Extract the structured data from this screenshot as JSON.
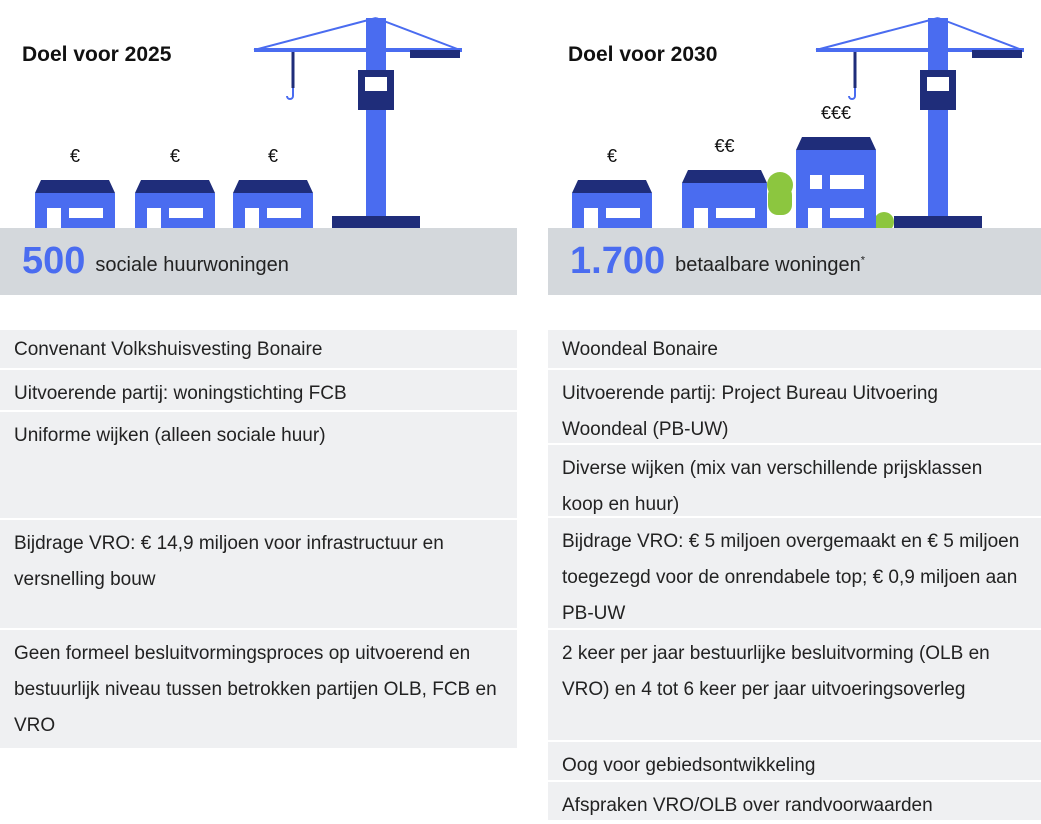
{
  "columns": [
    {
      "title": "Doel voor 2025",
      "house_labels": [
        "€",
        "€",
        "€"
      ],
      "number": "500",
      "label": "sociale huurwoningen",
      "rows": [
        "Convenant Volkshuisvesting Bonaire",
        "Uitvoerende partij: woningstichting FCB",
        "Uniforme wijken (alleen sociale huur)",
        "Bijdrage VRO: € 14,9 miljoen voor infrastructuur en versnelling bouw",
        "Geen formeel besluitvormingsproces op uitvoerend en bestuurlijk niveau tussen betrokken partijen OLB, FCB en VRO"
      ]
    },
    {
      "title": "Doel voor 2030",
      "house_labels": [
        "€",
        "€€",
        "€€€"
      ],
      "number": "1.700",
      "label": "betaalbare woningen",
      "footnote": "*",
      "rows": [
        "Woondeal Bonaire",
        "Uitvoerende partij: Project Bureau Uitvoering Woondeal (PB-UW)",
        "Diverse wijken (mix van verschillende prijsklassen koop en huur)",
        "Bijdrage VRO: € 5 miljoen overgemaakt en € 5 miljoen toegezegd voor de onrendabele top; € 0,9 miljoen aan PB-UW",
        "2 keer per jaar bestuurlijke besluitvorming (OLB en VRO) en 4 tot 6 keer per jaar uitvoeringsoverleg",
        "Oog voor gebiedsontwikkeling",
        "Afspraken VRO/OLB over randvoorwaarden"
      ]
    }
  ]
}
